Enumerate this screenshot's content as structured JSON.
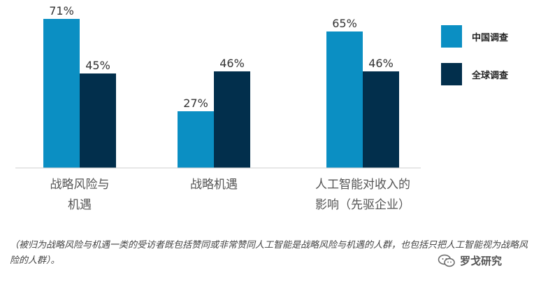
{
  "chart_data": {
    "type": "bar",
    "categories": [
      "战略风险与\n机遇",
      "战略机遇",
      "人工智能对收入的\n影响（先驱企业）"
    ],
    "series": [
      {
        "name": "中国调查",
        "values": [
          71,
          27,
          65
        ],
        "color": "#0b8fc3"
      },
      {
        "name": "全球调查",
        "values": [
          45,
          46,
          46
        ],
        "color": "#022f4c"
      }
    ],
    "value_suffix": "%",
    "ylim": [
      0,
      100
    ],
    "grid": false,
    "legend": "right"
  },
  "footnote": "（被归为战略风险与机遇一类的受访者既包括赞同或非常赞同人工智能是战略风险与机遇的人群，也包括只把人工智能视为战略风险的人群）。",
  "watermark": {
    "text": "罗戈研究",
    "icon": "wechat-icon"
  }
}
